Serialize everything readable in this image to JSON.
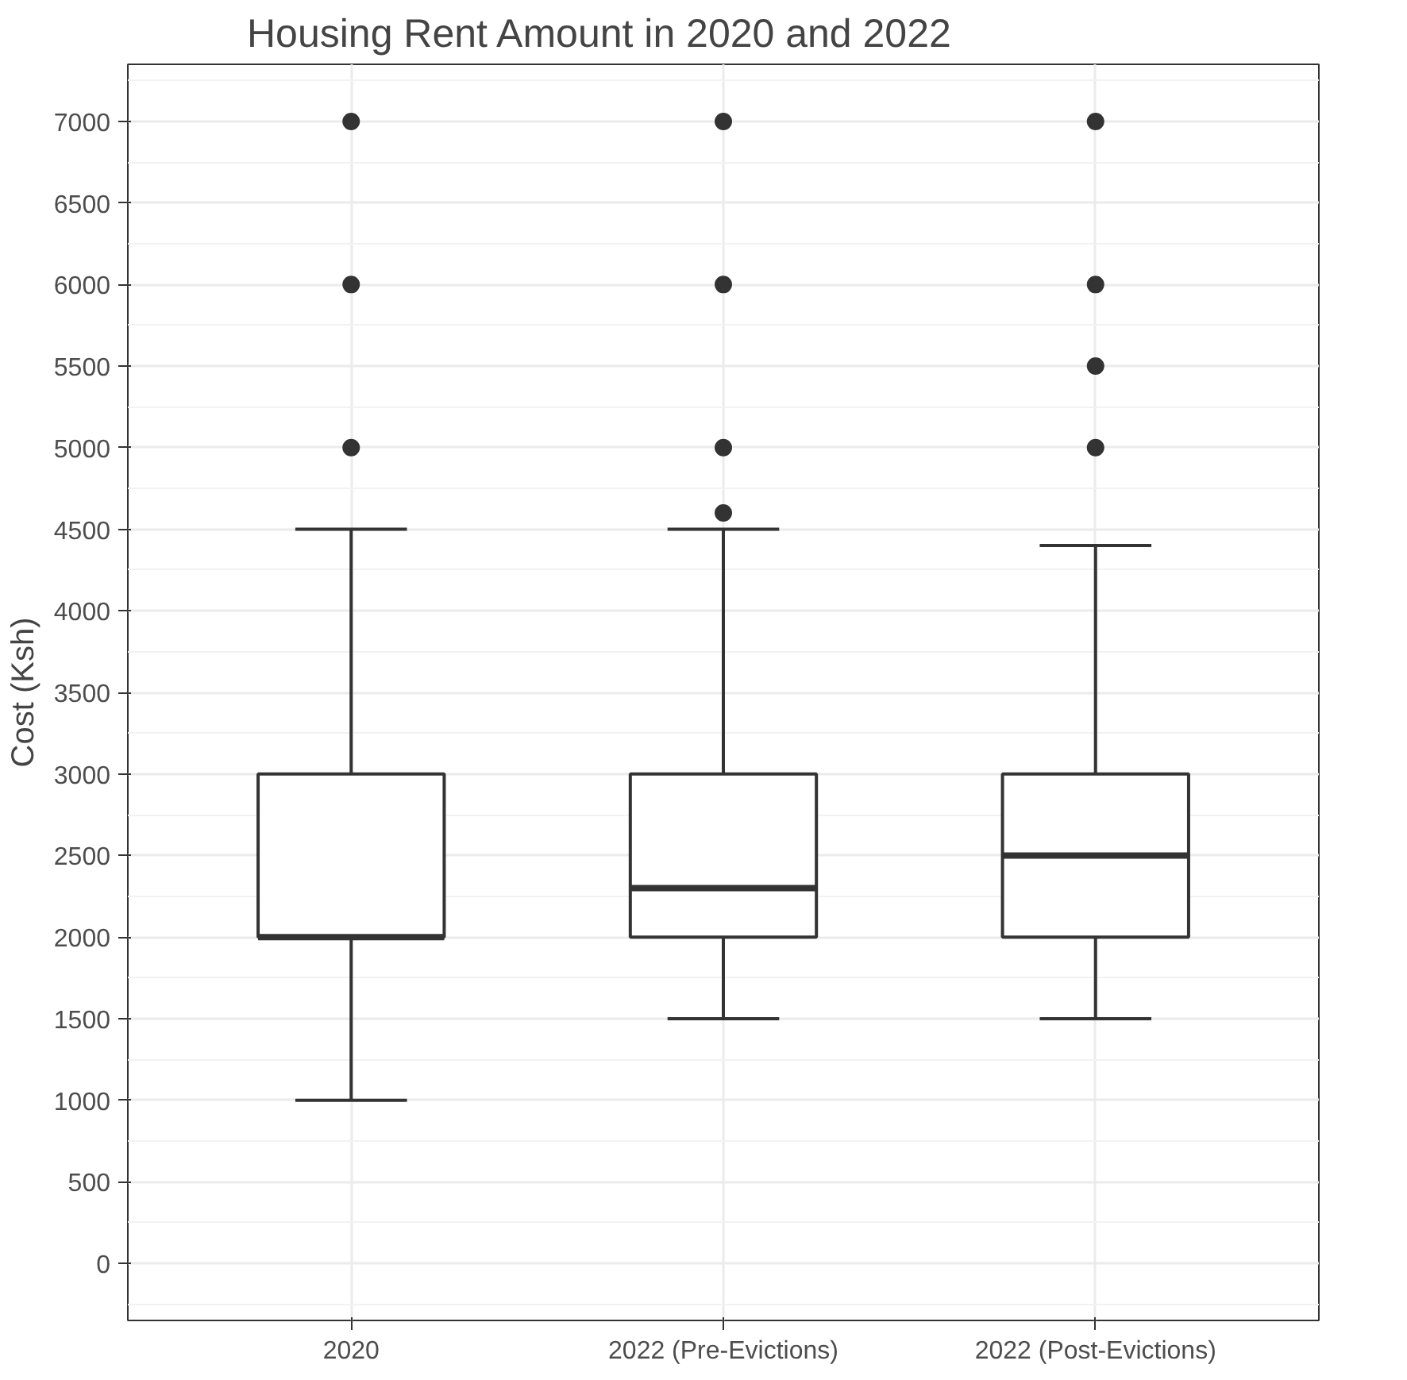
{
  "chart_data": {
    "type": "box",
    "title": "Housing Rent Amount in 2020 and 2022",
    "ylabel": "Cost (Ksh)",
    "categories": [
      "2020",
      "2022 (Pre-Evictions)",
      "2022 (Post-Evictions)"
    ],
    "boxes": [
      {
        "low": 1000,
        "q1": 2000,
        "median": 2000,
        "q3": 3000,
        "high": 4500,
        "outliers": [
          5000,
          6000,
          7000
        ]
      },
      {
        "low": 1500,
        "q1": 2000,
        "median": 2300,
        "q3": 3000,
        "high": 4500,
        "outliers": [
          4600,
          5000,
          6000,
          7000
        ]
      },
      {
        "low": 1500,
        "q1": 2000,
        "median": 2500,
        "q3": 3000,
        "high": 4400,
        "outliers": [
          5000,
          5500,
          6000,
          7000
        ]
      }
    ],
    "ylim": [
      -350,
      7350
    ],
    "yticks": [
      0,
      500,
      1000,
      1500,
      2000,
      2500,
      3000,
      3500,
      4000,
      4500,
      5000,
      5500,
      6000,
      6500,
      7000
    ],
    "grid": true
  }
}
